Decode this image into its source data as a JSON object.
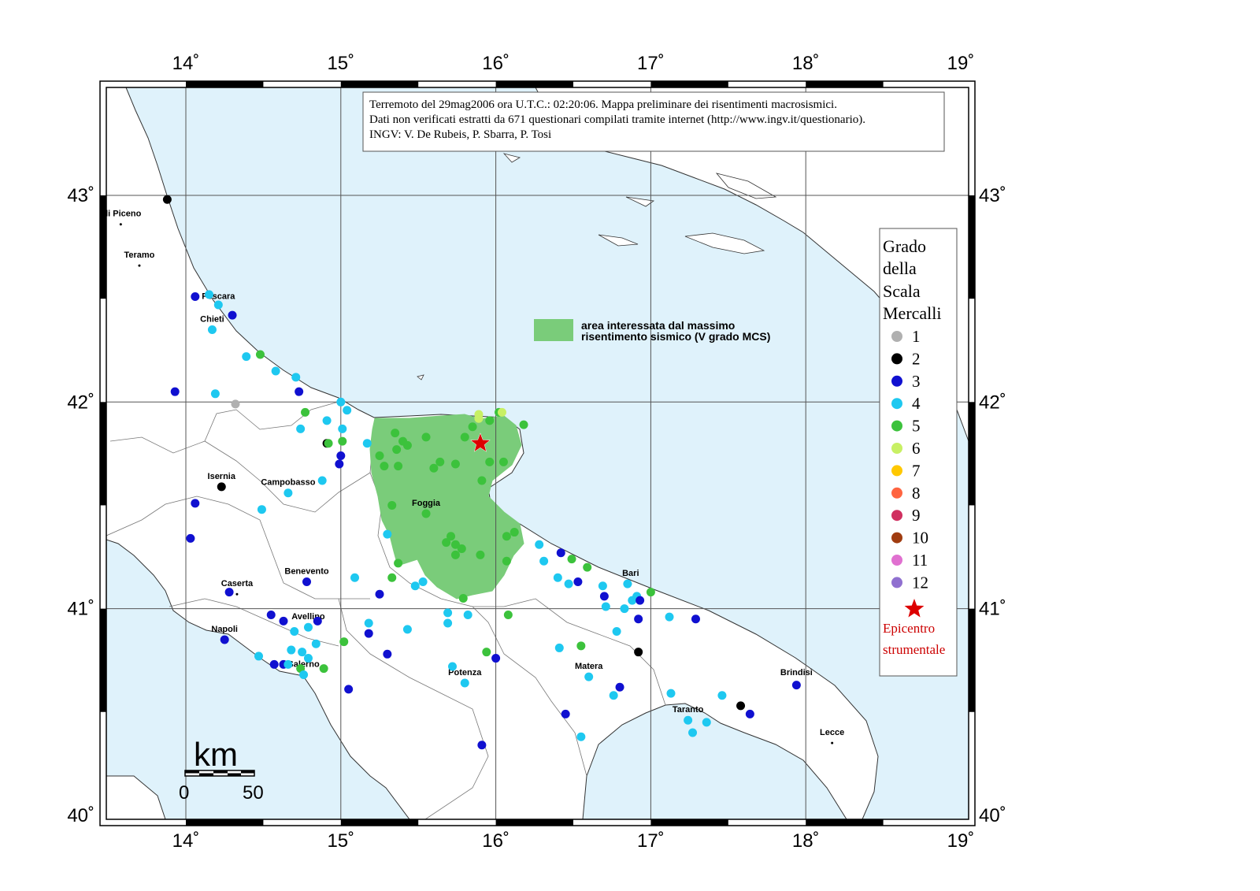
{
  "title_box": {
    "line1": "Terremoto del 29mag2006 ora U.T.C.: 02:20:06.  Mappa preliminare dei risentimenti macrosismici.",
    "line2": "Dati non verificati estratti da 671 questionari compilati tramite internet (http://www.ingv.it/questionario).",
    "line3": "INGV: V.  De Rubeis, P.  Sbarra, P.  Tosi"
  },
  "axes": {
    "lon_ticks": [
      "14˚",
      "15˚",
      "16˚",
      "17˚",
      "18˚",
      "19˚"
    ],
    "lat_ticks": [
      "43˚",
      "42˚",
      "41˚",
      "40˚"
    ]
  },
  "legend": {
    "title_lines": [
      "Grado",
      "della",
      "Scala",
      "Mercalli"
    ],
    "grades": [
      {
        "label": "1",
        "color": "#b0b0b0"
      },
      {
        "label": "2",
        "color": "#000000"
      },
      {
        "label": "3",
        "color": "#1010d0"
      },
      {
        "label": "4",
        "color": "#1ec8f0"
      },
      {
        "label": "5",
        "color": "#3cc23c"
      },
      {
        "label": "6",
        "color": "#c8f064"
      },
      {
        "label": "7",
        "color": "#ffc800"
      },
      {
        "label": "8",
        "color": "#ff6440"
      },
      {
        "label": "9",
        "color": "#d03060"
      },
      {
        "label": "10",
        "color": "#a03c10"
      },
      {
        "label": "11",
        "color": "#e070d0"
      },
      {
        "label": "12",
        "color": "#9070d0"
      }
    ],
    "epicentre_line1": "Epicentro",
    "epicentre_line2": "strumentale",
    "epicentre_color": "#dd0000"
  },
  "area_note": {
    "line1": "area interessata dal massimo",
    "line2": "risentimento sismico (V grado MCS)",
    "color": "#7acc7a"
  },
  "scale_bar": {
    "unit": "km",
    "label_start": "0",
    "label_end": "50"
  },
  "cities": [
    {
      "name": "oli Piceno",
      "lon": 13.58,
      "lat": 42.86
    },
    {
      "name": "Teramo",
      "lon": 13.7,
      "lat": 42.66
    },
    {
      "name": "Pescara",
      "lon": 14.21,
      "lat": 42.46
    },
    {
      "name": "Chieti",
      "lon": 14.17,
      "lat": 42.35
    },
    {
      "name": "Isernia",
      "lon": 14.23,
      "lat": 41.59
    },
    {
      "name": "Campobasso",
      "lon": 14.66,
      "lat": 41.56
    },
    {
      "name": "Foggia",
      "lon": 15.55,
      "lat": 41.46
    },
    {
      "name": "Benevento",
      "lon": 14.78,
      "lat": 41.13
    },
    {
      "name": "Caserta",
      "lon": 14.33,
      "lat": 41.07
    },
    {
      "name": "Napoli",
      "lon": 14.25,
      "lat": 40.85
    },
    {
      "name": "Avellino",
      "lon": 14.79,
      "lat": 40.91
    },
    {
      "name": "Salerno",
      "lon": 14.76,
      "lat": 40.68
    },
    {
      "name": "Potenza",
      "lon": 15.8,
      "lat": 40.64
    },
    {
      "name": "Matera",
      "lon": 16.6,
      "lat": 40.67
    },
    {
      "name": "Bari",
      "lon": 16.87,
      "lat": 41.12
    },
    {
      "name": "Taranto",
      "lon": 17.24,
      "lat": 40.46
    },
    {
      "name": "Brindisi",
      "lon": 17.94,
      "lat": 40.64
    },
    {
      "name": "Lecce",
      "lon": 18.17,
      "lat": 40.35
    }
  ],
  "epicentre": {
    "lon": 15.9,
    "lat": 41.8
  },
  "observations": [
    {
      "lon": 13.88,
      "lat": 42.98,
      "g": 2
    },
    {
      "lon": 14.06,
      "lat": 42.51,
      "g": 3
    },
    {
      "lon": 14.15,
      "lat": 42.52,
      "g": 4
    },
    {
      "lon": 14.21,
      "lat": 42.47,
      "g": 4
    },
    {
      "lon": 14.3,
      "lat": 42.42,
      "g": 3
    },
    {
      "lon": 14.17,
      "lat": 42.35,
      "g": 4
    },
    {
      "lon": 14.39,
      "lat": 42.22,
      "g": 4
    },
    {
      "lon": 14.48,
      "lat": 42.23,
      "g": 5
    },
    {
      "lon": 14.58,
      "lat": 42.15,
      "g": 4
    },
    {
      "lon": 14.71,
      "lat": 42.12,
      "g": 4
    },
    {
      "lon": 14.73,
      "lat": 42.05,
      "g": 3
    },
    {
      "lon": 13.93,
      "lat": 42.05,
      "g": 3
    },
    {
      "lon": 14.19,
      "lat": 42.04,
      "g": 4
    },
    {
      "lon": 14.32,
      "lat": 41.99,
      "g": 1
    },
    {
      "lon": 14.77,
      "lat": 41.95,
      "g": 5
    },
    {
      "lon": 14.74,
      "lat": 41.87,
      "g": 4
    },
    {
      "lon": 14.91,
      "lat": 41.91,
      "g": 4
    },
    {
      "lon": 15.0,
      "lat": 42.0,
      "g": 4
    },
    {
      "lon": 15.04,
      "lat": 41.96,
      "g": 4
    },
    {
      "lon": 15.01,
      "lat": 41.87,
      "g": 4
    },
    {
      "lon": 15.01,
      "lat": 41.81,
      "g": 5
    },
    {
      "lon": 14.91,
      "lat": 41.8,
      "g": 2
    },
    {
      "lon": 14.92,
      "lat": 41.8,
      "g": 5
    },
    {
      "lon": 15.0,
      "lat": 41.74,
      "g": 3
    },
    {
      "lon": 14.99,
      "lat": 41.7,
      "g": 3
    },
    {
      "lon": 14.88,
      "lat": 41.62,
      "g": 4
    },
    {
      "lon": 14.23,
      "lat": 41.59,
      "g": 2
    },
    {
      "lon": 14.49,
      "lat": 41.48,
      "g": 4
    },
    {
      "lon": 14.66,
      "lat": 41.56,
      "g": 4
    },
    {
      "lon": 14.06,
      "lat": 41.51,
      "g": 3
    },
    {
      "lon": 14.03,
      "lat": 41.34,
      "g": 3
    },
    {
      "lon": 15.17,
      "lat": 41.8,
      "g": 4
    },
    {
      "lon": 15.25,
      "lat": 41.74,
      "g": 5
    },
    {
      "lon": 15.28,
      "lat": 41.69,
      "g": 5
    },
    {
      "lon": 15.37,
      "lat": 41.69,
      "g": 5
    },
    {
      "lon": 15.36,
      "lat": 41.77,
      "g": 5
    },
    {
      "lon": 15.35,
      "lat": 41.85,
      "g": 5
    },
    {
      "lon": 15.4,
      "lat": 41.81,
      "g": 5
    },
    {
      "lon": 15.43,
      "lat": 41.79,
      "g": 5
    },
    {
      "lon": 15.55,
      "lat": 41.83,
      "g": 5
    },
    {
      "lon": 15.6,
      "lat": 41.68,
      "g": 5
    },
    {
      "lon": 15.64,
      "lat": 41.71,
      "g": 5
    },
    {
      "lon": 15.74,
      "lat": 41.7,
      "g": 5
    },
    {
      "lon": 15.8,
      "lat": 41.83,
      "g": 5
    },
    {
      "lon": 15.85,
      "lat": 41.88,
      "g": 5
    },
    {
      "lon": 15.89,
      "lat": 41.94,
      "g": 6
    },
    {
      "lon": 15.89,
      "lat": 41.92,
      "g": 6
    },
    {
      "lon": 15.96,
      "lat": 41.91,
      "g": 5
    },
    {
      "lon": 16.02,
      "lat": 41.95,
      "g": 5
    },
    {
      "lon": 16.04,
      "lat": 41.95,
      "g": 6
    },
    {
      "lon": 16.18,
      "lat": 41.89,
      "g": 5
    },
    {
      "lon": 15.96,
      "lat": 41.71,
      "g": 5
    },
    {
      "lon": 16.05,
      "lat": 41.71,
      "g": 5
    },
    {
      "lon": 15.91,
      "lat": 41.62,
      "g": 5
    },
    {
      "lon": 15.33,
      "lat": 41.5,
      "g": 5
    },
    {
      "lon": 15.55,
      "lat": 41.46,
      "g": 5
    },
    {
      "lon": 15.3,
      "lat": 41.36,
      "g": 4
    },
    {
      "lon": 15.37,
      "lat": 41.22,
      "g": 5
    },
    {
      "lon": 15.33,
      "lat": 41.15,
      "g": 5
    },
    {
      "lon": 15.68,
      "lat": 41.32,
      "g": 5
    },
    {
      "lon": 15.71,
      "lat": 41.35,
      "g": 5
    },
    {
      "lon": 15.74,
      "lat": 41.31,
      "g": 5
    },
    {
      "lon": 15.78,
      "lat": 41.29,
      "g": 5
    },
    {
      "lon": 15.74,
      "lat": 41.26,
      "g": 5
    },
    {
      "lon": 15.9,
      "lat": 41.26,
      "g": 5
    },
    {
      "lon": 16.07,
      "lat": 41.35,
      "g": 5
    },
    {
      "lon": 16.12,
      "lat": 41.37,
      "g": 5
    },
    {
      "lon": 16.07,
      "lat": 41.23,
      "g": 5
    },
    {
      "lon": 15.79,
      "lat": 41.05,
      "g": 5
    },
    {
      "lon": 15.09,
      "lat": 41.15,
      "g": 4
    },
    {
      "lon": 15.48,
      "lat": 41.11,
      "g": 4
    },
    {
      "lon": 15.53,
      "lat": 41.13,
      "g": 4
    },
    {
      "lon": 15.25,
      "lat": 41.07,
      "g": 3
    },
    {
      "lon": 16.28,
      "lat": 41.31,
      "g": 4
    },
    {
      "lon": 16.31,
      "lat": 41.23,
      "g": 4
    },
    {
      "lon": 16.42,
      "lat": 41.27,
      "g": 3
    },
    {
      "lon": 16.49,
      "lat": 41.24,
      "g": 5
    },
    {
      "lon": 16.59,
      "lat": 41.2,
      "g": 5
    },
    {
      "lon": 16.4,
      "lat": 41.15,
      "g": 4
    },
    {
      "lon": 16.47,
      "lat": 41.12,
      "g": 4
    },
    {
      "lon": 16.53,
      "lat": 41.13,
      "g": 3
    },
    {
      "lon": 16.69,
      "lat": 41.11,
      "g": 4
    },
    {
      "lon": 16.85,
      "lat": 41.12,
      "g": 4
    },
    {
      "lon": 17.0,
      "lat": 41.08,
      "g": 5
    },
    {
      "lon": 16.7,
      "lat": 41.06,
      "g": 3
    },
    {
      "lon": 16.71,
      "lat": 41.01,
      "g": 4
    },
    {
      "lon": 16.83,
      "lat": 41.0,
      "g": 4
    },
    {
      "lon": 16.88,
      "lat": 41.04,
      "g": 4
    },
    {
      "lon": 16.91,
      "lat": 41.06,
      "g": 4
    },
    {
      "lon": 16.93,
      "lat": 41.04,
      "g": 3
    },
    {
      "lon": 16.92,
      "lat": 40.95,
      "g": 3
    },
    {
      "lon": 17.12,
      "lat": 40.96,
      "g": 4
    },
    {
      "lon": 17.29,
      "lat": 40.95,
      "g": 3
    },
    {
      "lon": 16.78,
      "lat": 40.89,
      "g": 4
    },
    {
      "lon": 16.92,
      "lat": 40.79,
      "g": 2
    },
    {
      "lon": 16.41,
      "lat": 40.81,
      "g": 4
    },
    {
      "lon": 16.55,
      "lat": 40.82,
      "g": 5
    },
    {
      "lon": 16.6,
      "lat": 40.67,
      "g": 4
    },
    {
      "lon": 16.8,
      "lat": 40.62,
      "g": 3
    },
    {
      "lon": 16.76,
      "lat": 40.58,
      "g": 4
    },
    {
      "lon": 17.13,
      "lat": 40.59,
      "g": 4
    },
    {
      "lon": 17.46,
      "lat": 40.58,
      "g": 4
    },
    {
      "lon": 17.58,
      "lat": 40.53,
      "g": 2
    },
    {
      "lon": 17.64,
      "lat": 40.49,
      "g": 3
    },
    {
      "lon": 17.24,
      "lat": 40.46,
      "g": 4
    },
    {
      "lon": 17.36,
      "lat": 40.45,
      "g": 4
    },
    {
      "lon": 17.27,
      "lat": 40.4,
      "g": 4
    },
    {
      "lon": 16.45,
      "lat": 40.49,
      "g": 3
    },
    {
      "lon": 16.55,
      "lat": 40.38,
      "g": 4
    },
    {
      "lon": 17.94,
      "lat": 40.63,
      "g": 3
    },
    {
      "lon": 15.69,
      "lat": 40.98,
      "g": 4
    },
    {
      "lon": 15.69,
      "lat": 40.93,
      "g": 4
    },
    {
      "lon": 15.82,
      "lat": 40.97,
      "g": 4
    },
    {
      "lon": 16.08,
      "lat": 40.97,
      "g": 5
    },
    {
      "lon": 15.43,
      "lat": 40.9,
      "g": 4
    },
    {
      "lon": 15.18,
      "lat": 40.93,
      "g": 4
    },
    {
      "lon": 15.18,
      "lat": 40.88,
      "g": 3
    },
    {
      "lon": 15.02,
      "lat": 40.84,
      "g": 5
    },
    {
      "lon": 15.3,
      "lat": 40.78,
      "g": 3
    },
    {
      "lon": 15.72,
      "lat": 40.72,
      "g": 4
    },
    {
      "lon": 15.94,
      "lat": 40.79,
      "g": 5
    },
    {
      "lon": 16.0,
      "lat": 40.76,
      "g": 3
    },
    {
      "lon": 15.8,
      "lat": 40.64,
      "g": 4
    },
    {
      "lon": 15.05,
      "lat": 40.61,
      "g": 3
    },
    {
      "lon": 15.91,
      "lat": 40.34,
      "g": 3
    },
    {
      "lon": 14.55,
      "lat": 40.97,
      "g": 3
    },
    {
      "lon": 14.63,
      "lat": 40.94,
      "g": 3
    },
    {
      "lon": 14.7,
      "lat": 40.89,
      "g": 4
    },
    {
      "lon": 14.79,
      "lat": 40.91,
      "g": 4
    },
    {
      "lon": 14.85,
      "lat": 40.94,
      "g": 3
    },
    {
      "lon": 14.84,
      "lat": 40.83,
      "g": 4
    },
    {
      "lon": 14.68,
      "lat": 40.8,
      "g": 4
    },
    {
      "lon": 14.75,
      "lat": 40.79,
      "g": 4
    },
    {
      "lon": 14.79,
      "lat": 40.76,
      "g": 4
    },
    {
      "lon": 14.47,
      "lat": 40.77,
      "g": 4
    },
    {
      "lon": 14.57,
      "lat": 40.73,
      "g": 3
    },
    {
      "lon": 14.63,
      "lat": 40.73,
      "g": 3
    },
    {
      "lon": 14.66,
      "lat": 40.73,
      "g": 4
    },
    {
      "lon": 14.74,
      "lat": 40.71,
      "g": 5
    },
    {
      "lon": 14.89,
      "lat": 40.71,
      "g": 5
    },
    {
      "lon": 14.76,
      "lat": 40.68,
      "g": 4
    },
    {
      "lon": 14.25,
      "lat": 40.85,
      "g": 3
    },
    {
      "lon": 14.28,
      "lat": 41.08,
      "g": 3
    },
    {
      "lon": 14.78,
      "lat": 41.13,
      "g": 3
    }
  ]
}
